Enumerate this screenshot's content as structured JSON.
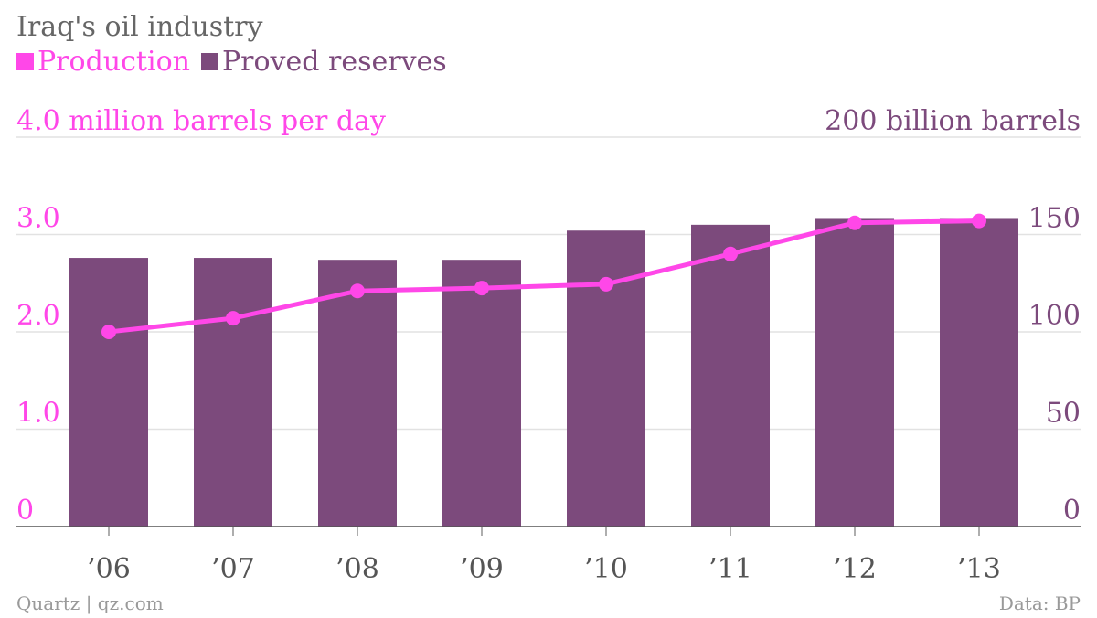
{
  "header": {
    "title": "Iraq's oil industry"
  },
  "legend": [
    {
      "label": "Production",
      "color": "#ff47e8",
      "icon": "square-swatch"
    },
    {
      "label": "Proved reserves",
      "color": "#7c4a7c",
      "icon": "square-swatch"
    }
  ],
  "footer": {
    "source_left": "Quartz | qz.com",
    "source_right": "Data: BP"
  },
  "chart_data": {
    "type": "bar",
    "categories": [
      "’06",
      "’07",
      "’08",
      "’09",
      "’10",
      "’11",
      "’12",
      "’13"
    ],
    "series": [
      {
        "name": "Proved reserves",
        "type": "bar",
        "axis": "right",
        "color": "#7c4a7c",
        "values": [
          138,
          138,
          137,
          137,
          152,
          155,
          158,
          158
        ]
      },
      {
        "name": "Production",
        "type": "line",
        "axis": "left",
        "color": "#ff47e8",
        "values": [
          2.0,
          2.14,
          2.42,
          2.45,
          2.49,
          2.8,
          3.12,
          3.14
        ]
      }
    ],
    "left_axis": {
      "top_label": "4.0 million barrels per day",
      "ticks": [
        "0",
        "1.0",
        "2.0",
        "3.0"
      ],
      "tick_values": [
        0,
        1,
        2,
        3
      ],
      "range": [
        0,
        4
      ],
      "color": "#ff47e8"
    },
    "right_axis": {
      "top_label": "200 billion barrels",
      "ticks": [
        "0",
        "50",
        "100",
        "150"
      ],
      "tick_values": [
        0,
        50,
        100,
        150
      ],
      "range": [
        0,
        200
      ],
      "color": "#7c4a7c"
    },
    "grid": true,
    "legend_position": "top-left"
  }
}
